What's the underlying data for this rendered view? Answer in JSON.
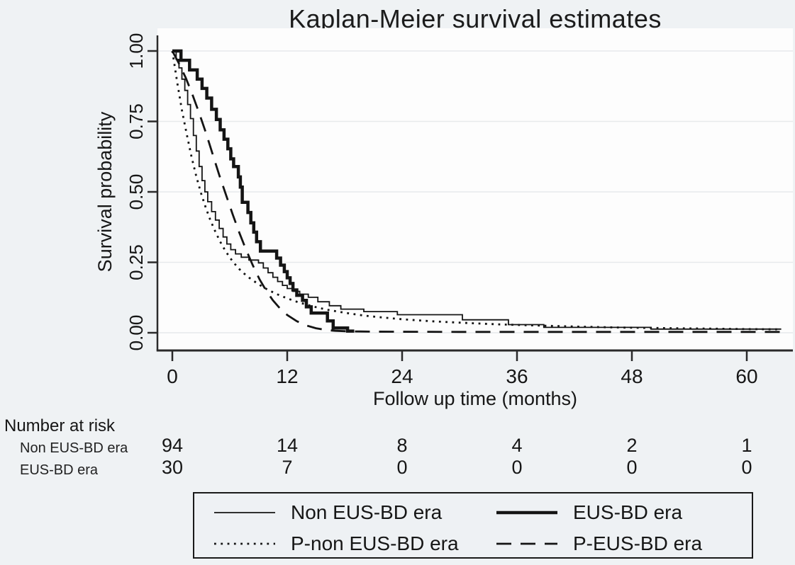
{
  "title": "Kaplan-Meier survival estimates",
  "colors": {
    "background": "#eff2f4",
    "plot_background": "#fdfdfd",
    "line": "#141414",
    "gridline": "#e7eaec",
    "axis": "#2a2a2a"
  },
  "chart_data": {
    "type": "line",
    "title": "Kaplan-Meier survival estimates",
    "xlabel": "Follow up time (months)",
    "ylabel": "Survival probability",
    "xlim": [
      0,
      66
    ],
    "ylim": [
      0,
      1
    ],
    "xticks": [
      0,
      12,
      24,
      36,
      48,
      60
    ],
    "ytick_labels": [
      "0.00",
      "0.25",
      "0.50",
      "0.75",
      "1.00"
    ],
    "ytick_values": [
      0,
      0.25,
      0.5,
      0.75,
      1
    ],
    "grid": "horizontal",
    "legend_position": "bottom",
    "series": [
      {
        "name": "Non EUS-BD era",
        "style": "solid-thin",
        "step": true,
        "points": [
          [
            0,
            1.0
          ],
          [
            0.4,
            0.97
          ],
          [
            0.7,
            0.94
          ],
          [
            1.0,
            0.9
          ],
          [
            1.3,
            0.86
          ],
          [
            1.6,
            0.81
          ],
          [
            1.9,
            0.76
          ],
          [
            2.2,
            0.7
          ],
          [
            2.5,
            0.645
          ],
          [
            2.8,
            0.59
          ],
          [
            3.1,
            0.54
          ],
          [
            3.4,
            0.5
          ],
          [
            3.7,
            0.465
          ],
          [
            4.1,
            0.43
          ],
          [
            4.5,
            0.4
          ],
          [
            4.9,
            0.37
          ],
          [
            5.3,
            0.34
          ],
          [
            5.7,
            0.315
          ],
          [
            6.1,
            0.295
          ],
          [
            6.6,
            0.28
          ],
          [
            7.2,
            0.268
          ],
          [
            8.0,
            0.258
          ],
          [
            9.0,
            0.248
          ],
          [
            9.5,
            0.23
          ],
          [
            10.0,
            0.213
          ],
          [
            10.5,
            0.197
          ],
          [
            11.0,
            0.182
          ],
          [
            11.5,
            0.168
          ],
          [
            12.0,
            0.157
          ],
          [
            12.6,
            0.147
          ],
          [
            13.3,
            0.137
          ],
          [
            14.2,
            0.126
          ],
          [
            15.2,
            0.11
          ],
          [
            16.4,
            0.096
          ],
          [
            17.6,
            0.084
          ],
          [
            20.0,
            0.075
          ],
          [
            23.5,
            0.064
          ],
          [
            30.3,
            0.046
          ],
          [
            35.1,
            0.029
          ],
          [
            38.8,
            0.019
          ],
          [
            50.0,
            0.013
          ],
          [
            63.6,
            0.013
          ]
        ]
      },
      {
        "name": "EUS-BD era",
        "style": "solid-thick",
        "step": true,
        "points": [
          [
            0,
            1.0
          ],
          [
            0.9,
            0.967
          ],
          [
            1.8,
            0.933
          ],
          [
            2.6,
            0.9
          ],
          [
            3.1,
            0.867
          ],
          [
            3.6,
            0.833
          ],
          [
            4.1,
            0.793
          ],
          [
            4.6,
            0.757
          ],
          [
            5.0,
            0.72
          ],
          [
            5.4,
            0.687
          ],
          [
            5.8,
            0.653
          ],
          [
            6.1,
            0.617
          ],
          [
            6.4,
            0.59
          ],
          [
            6.9,
            0.553
          ],
          [
            7.1,
            0.517
          ],
          [
            7.3,
            0.463
          ],
          [
            7.9,
            0.427
          ],
          [
            8.2,
            0.39
          ],
          [
            8.5,
            0.357
          ],
          [
            8.8,
            0.323
          ],
          [
            9.2,
            0.29
          ],
          [
            10.9,
            0.265
          ],
          [
            11.3,
            0.24
          ],
          [
            11.7,
            0.217
          ],
          [
            12.0,
            0.195
          ],
          [
            12.3,
            0.175
          ],
          [
            12.6,
            0.152
          ],
          [
            13.0,
            0.133
          ],
          [
            13.6,
            0.115
          ],
          [
            14.0,
            0.092
          ],
          [
            14.5,
            0.07
          ],
          [
            16.2,
            0.042
          ],
          [
            16.8,
            0.017
          ],
          [
            18.3,
            0.006
          ],
          [
            19.0,
            0.006
          ]
        ]
      },
      {
        "name": "P-non EUS-BD era",
        "style": "dotted",
        "step": false,
        "points": [
          [
            0,
            1.0
          ],
          [
            0.5,
            0.89
          ],
          [
            1,
            0.79
          ],
          [
            1.5,
            0.705
          ],
          [
            2,
            0.625
          ],
          [
            2.5,
            0.555
          ],
          [
            3,
            0.495
          ],
          [
            3.5,
            0.443
          ],
          [
            4,
            0.397
          ],
          [
            4.5,
            0.358
          ],
          [
            5,
            0.323
          ],
          [
            5.5,
            0.293
          ],
          [
            6,
            0.267
          ],
          [
            6.5,
            0.245
          ],
          [
            7,
            0.226
          ],
          [
            7.5,
            0.21
          ],
          [
            8,
            0.196
          ],
          [
            9,
            0.172
          ],
          [
            10,
            0.152
          ],
          [
            11,
            0.136
          ],
          [
            12,
            0.122
          ],
          [
            13,
            0.11
          ],
          [
            14,
            0.1
          ],
          [
            15,
            0.091
          ],
          [
            16,
            0.083
          ],
          [
            17,
            0.077
          ],
          [
            18,
            0.071
          ],
          [
            20,
            0.061
          ],
          [
            22,
            0.054
          ],
          [
            24,
            0.048
          ],
          [
            27,
            0.041
          ],
          [
            30,
            0.036
          ],
          [
            34,
            0.03
          ],
          [
            38,
            0.026
          ],
          [
            42,
            0.022
          ],
          [
            46,
            0.019
          ],
          [
            50,
            0.017
          ],
          [
            55,
            0.015
          ],
          [
            60,
            0.013
          ],
          [
            63.6,
            0.012
          ]
        ]
      },
      {
        "name": "P-EUS-BD era",
        "style": "dashed",
        "step": false,
        "points": [
          [
            0,
            1.0
          ],
          [
            0.7,
            0.955
          ],
          [
            1.4,
            0.905
          ],
          [
            2.1,
            0.845
          ],
          [
            2.8,
            0.78
          ],
          [
            3.5,
            0.71
          ],
          [
            4.2,
            0.635
          ],
          [
            4.9,
            0.56
          ],
          [
            5.6,
            0.49
          ],
          [
            6.3,
            0.42
          ],
          [
            7.0,
            0.355
          ],
          [
            7.7,
            0.295
          ],
          [
            8.4,
            0.24
          ],
          [
            9.1,
            0.19
          ],
          [
            9.8,
            0.15
          ],
          [
            10.5,
            0.115
          ],
          [
            11.2,
            0.088
          ],
          [
            12.0,
            0.063
          ],
          [
            13.0,
            0.041
          ],
          [
            14.0,
            0.026
          ],
          [
            15.0,
            0.016
          ],
          [
            16.0,
            0.01
          ],
          [
            17.0,
            0.007
          ],
          [
            18.5,
            0.005
          ],
          [
            21.0,
            0.004
          ],
          [
            30.0,
            0.003
          ],
          [
            45.0,
            0.003
          ],
          [
            63.6,
            0.003
          ]
        ]
      }
    ]
  },
  "risk_table": {
    "heading": "Number at risk",
    "times": [
      0,
      12,
      24,
      36,
      48,
      60
    ],
    "rows": [
      {
        "label": "Non EUS-BD era",
        "counts": [
          "94",
          "14",
          "8",
          "4",
          "2",
          "1"
        ]
      },
      {
        "label": "EUS-BD era",
        "counts": [
          "30",
          "7",
          "0",
          "0",
          "0",
          "0"
        ]
      }
    ]
  },
  "legend": {
    "items": [
      {
        "label": "Non EUS-BD era",
        "style": "solid-thin"
      },
      {
        "label": "EUS-BD era",
        "style": "solid-thick"
      },
      {
        "label": "P-non EUS-BD era",
        "style": "dotted"
      },
      {
        "label": "P-EUS-BD era",
        "style": "dashed"
      }
    ]
  }
}
